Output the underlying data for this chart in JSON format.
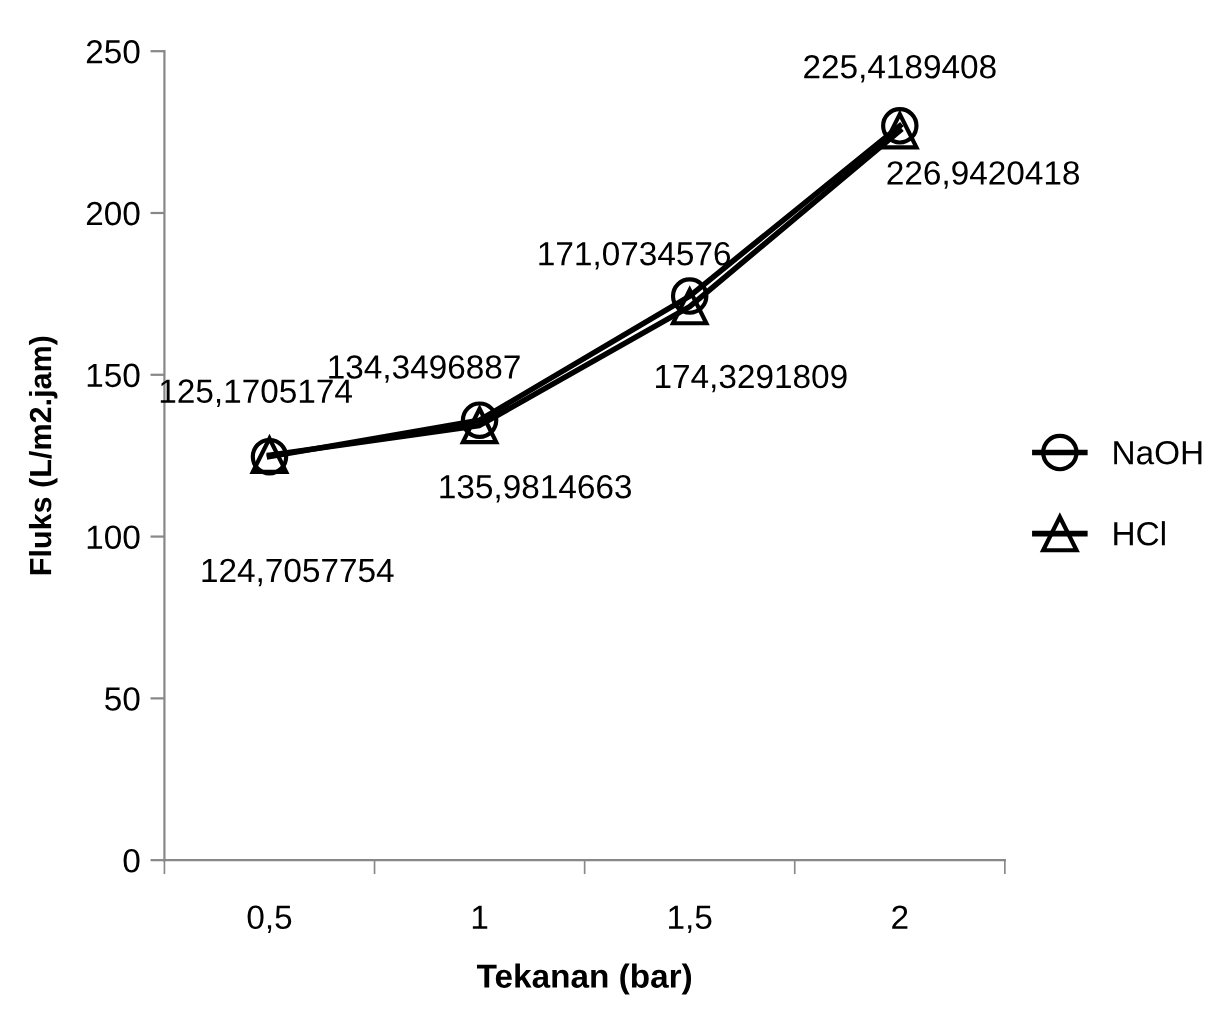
{
  "chart_data": {
    "type": "line",
    "xlabel": "Tekanan (bar)",
    "ylabel": "Fluks (L/m2.jam)",
    "categories": [
      "0,5",
      "1",
      "1,5",
      "2"
    ],
    "series": [
      {
        "name": "NaOH",
        "color": "#000000",
        "marker": "circle",
        "values": [
          124.7057754,
          135.9814663,
          174.3291809,
          226.9420418
        ],
        "value_labels": [
          "124,7057754",
          "135,9814663",
          "174,3291809",
          "226,9420418"
        ]
      },
      {
        "name": "HCl",
        "color": "#000000",
        "marker": "triangle",
        "values": [
          125.1705174,
          134.3496887,
          171.0734576,
          225.4189408
        ],
        "value_labels": [
          "125,1705174",
          "134,3496887",
          "171,0734576",
          "225,4189408"
        ]
      }
    ],
    "ylim": [
      0,
      250
    ],
    "yticks": [
      0,
      50,
      100,
      150,
      200,
      250
    ],
    "grid": false,
    "legend": "right",
    "line_style": "solid"
  }
}
